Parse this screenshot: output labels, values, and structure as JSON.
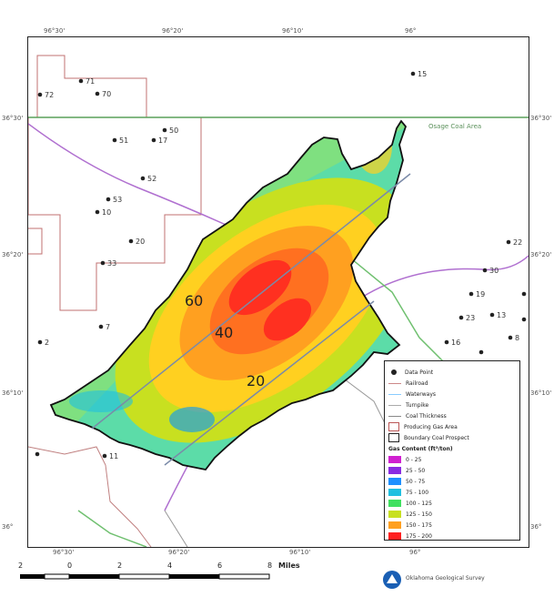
{
  "top_ticks": [
    "96°30'",
    "96°20'",
    "96°10'",
    "96°"
  ],
  "bottom_ticks": [
    "96°30'",
    "96°20'",
    "96°10'",
    "96°"
  ],
  "left_ticks": [
    "36°30'",
    "36°20'",
    "36°10'",
    "36°"
  ],
  "right_ticks": [
    "36°30'",
    "36°20'",
    "36°10'",
    "36°"
  ],
  "field_label": "Osage Coal Area",
  "contour_labels": [
    "60",
    "40",
    "20"
  ],
  "points": [
    {
      "label": "72"
    },
    {
      "label": "71"
    },
    {
      "label": "70"
    },
    {
      "label": "51"
    },
    {
      "label": "50"
    },
    {
      "label": "52"
    },
    {
      "label": "53"
    },
    {
      "label": "20"
    },
    {
      "label": "10"
    },
    {
      "label": "33"
    },
    {
      "label": "17"
    },
    {
      "label": "7"
    },
    {
      "label": "2"
    },
    {
      "label": "15"
    },
    {
      "label": "22"
    },
    {
      "label": "30"
    },
    {
      "label": "19"
    },
    {
      "label": "13"
    },
    {
      "label": "23"
    },
    {
      "label": "8"
    },
    {
      "label": "16"
    },
    {
      "label": "11"
    }
  ],
  "legend": {
    "symbols": [
      {
        "label": "Data Point",
        "kind": "point"
      },
      {
        "label": "Railroad",
        "kind": "line",
        "color": "#c88"
      },
      {
        "label": "Waterways",
        "kind": "line",
        "color": "#8cf"
      },
      {
        "label": "Turnpike",
        "kind": "line",
        "color": "#aaa"
      },
      {
        "label": "Coal Thickness",
        "kind": "line",
        "color": "#888"
      },
      {
        "label": "Producing Gas Area",
        "kind": "box",
        "color": "#b55"
      },
      {
        "label": "Boundary Coal Prospect",
        "kind": "box",
        "color": "#222"
      }
    ],
    "scale_title": "Gas Content (ft³/ton)",
    "classes": [
      {
        "label": "0 - 25",
        "color": "#d020d0"
      },
      {
        "label": "25 - 50",
        "color": "#8a2be2"
      },
      {
        "label": "50 - 75",
        "color": "#1e90ff"
      },
      {
        "label": "75 - 100",
        "color": "#20c0e0"
      },
      {
        "label": "100 - 125",
        "color": "#40e060"
      },
      {
        "label": "125 - 150",
        "color": "#c8e020"
      },
      {
        "label": "150 - 175",
        "color": "#ffa020"
      },
      {
        "label": "175 - 200",
        "color": "#ff2020"
      }
    ]
  },
  "scale": {
    "labels": [
      "2",
      "0",
      "2",
      "4",
      "6",
      "8"
    ],
    "units": "Miles"
  },
  "logo_text": "Oklahoma Geological Survey"
}
